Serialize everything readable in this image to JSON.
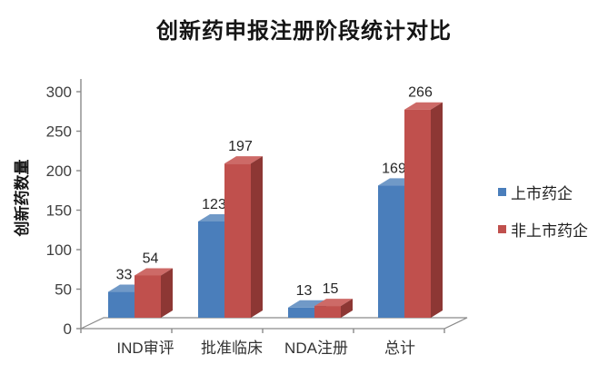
{
  "title": "创新药申报注册阶段统计对比",
  "chart_data": {
    "type": "bar",
    "variant": "3d-clustered-column",
    "title": "创新药申报注册阶段统计对比",
    "categories": [
      "IND审评",
      "批准临床",
      "NDA注册",
      "总计"
    ],
    "series": [
      {
        "name": "上市药企",
        "color": "#4a7ebb",
        "side_color": "#35608f",
        "top_color": "#7099c7",
        "values": [
          33,
          123,
          13,
          169
        ]
      },
      {
        "name": "非上市药企",
        "color": "#c0504d",
        "side_color": "#8d3734",
        "top_color": "#cd6a67",
        "values": [
          54,
          197,
          15,
          266
        ]
      }
    ],
    "xlabel": "",
    "ylabel": "创新药数量",
    "ylim": [
      0,
      300
    ],
    "yticks": [
      0,
      50,
      100,
      150,
      200,
      250,
      300
    ],
    "data_labels": true,
    "legend_position": "right",
    "grid": false,
    "axis_color": "#8a8a8a",
    "tick_label_color": "#404040",
    "data_label_color": "#262626",
    "category_label_color": "#333333"
  }
}
